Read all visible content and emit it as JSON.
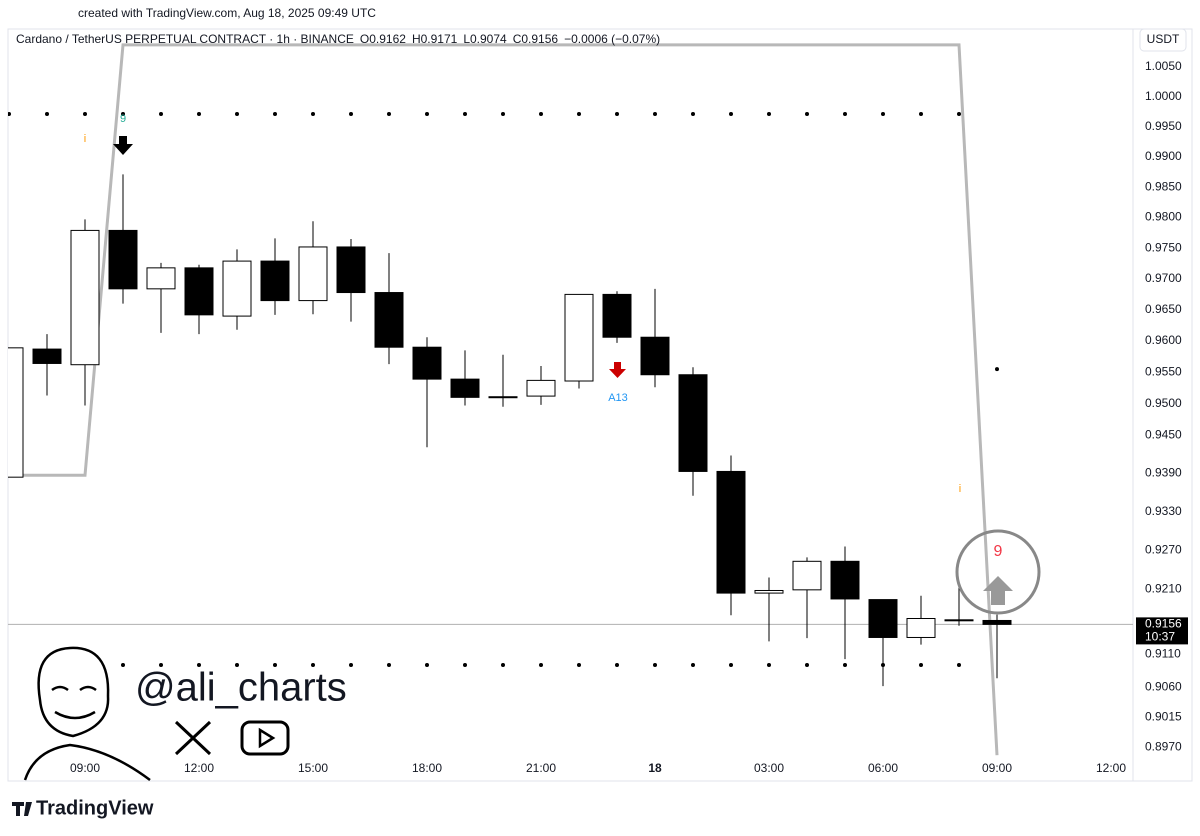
{
  "chart_data": {
    "type": "candlestick",
    "created_note": "created with TradingView.com, Aug 18, 2025 09:49 UTC",
    "title": "Cardano / TetherUS PERPETUAL CONTRACT · 1h · BINANCE",
    "legend_ohlc": [
      "O0.9162",
      "H0.9171",
      "L0.9074",
      "C0.9156",
      "−0.0006 (−0.07%)"
    ],
    "currency": "USDT",
    "watermark": "@ali_charts",
    "brand": "TradingView",
    "log_scale": true,
    "up_color": "#ffffff",
    "down_color": "#000000",
    "categories": [
      null,
      null,
      "09:00",
      null,
      null,
      "12:00",
      null,
      null,
      "15:00",
      null,
      null,
      "18:00",
      null,
      null,
      "21:00",
      null,
      null,
      "18",
      null,
      null,
      "03:00",
      null,
      null,
      "06:00",
      null,
      null,
      "09:00",
      null,
      null,
      "12:00"
    ],
    "open": [
      0.9384,
      0.9587,
      0.9562,
      0.9779,
      0.9684,
      0.9718,
      0.964,
      0.9729,
      0.9665,
      0.9752,
      0.9678,
      0.959,
      0.9539,
      0.951,
      0.9512,
      0.9536,
      0.9675,
      0.9606,
      0.9546,
      0.9393,
      0.9204,
      0.9209,
      0.9253,
      0.9194,
      0.9136,
      0.9163,
      0.9162,
      null,
      null,
      null
    ],
    "high": [
      0.9589,
      0.9611,
      0.9797,
      0.9871,
      0.9726,
      0.9723,
      0.9748,
      0.9766,
      0.9794,
      0.9765,
      0.9742,
      0.9606,
      0.9585,
      0.9578,
      0.956,
      0.9675,
      0.968,
      0.9684,
      0.9558,
      0.9418,
      0.9228,
      0.9259,
      0.9276,
      0.9194,
      0.92,
      0.9213,
      0.9171,
      null,
      null,
      null
    ],
    "low": [
      0.9384,
      0.9513,
      0.9497,
      0.966,
      0.9613,
      0.9611,
      0.9618,
      0.9642,
      0.9643,
      0.9631,
      0.9563,
      0.9431,
      0.9497,
      0.9495,
      0.9498,
      0.9524,
      0.9597,
      0.9526,
      0.9355,
      0.917,
      0.913,
      0.9135,
      0.9103,
      0.9062,
      0.9125,
      0.9154,
      0.9074,
      null,
      null,
      null
    ],
    "close": [
      0.9589,
      0.9564,
      0.9779,
      0.9684,
      0.9718,
      0.9642,
      0.9729,
      0.9665,
      0.9752,
      0.9678,
      0.959,
      0.9539,
      0.951,
      0.9511,
      0.9537,
      0.9675,
      0.9606,
      0.9546,
      0.9393,
      0.9204,
      0.9208,
      0.9253,
      0.9195,
      0.9136,
      0.9165,
      0.9162,
      0.9156,
      null,
      null,
      null
    ],
    "step_line": {
      "color": "#b8b8b8",
      "values": [
        0.9387,
        0.9387,
        0.9387,
        1.0087,
        1.0087,
        1.0087,
        1.0087,
        1.0087,
        1.0087,
        1.0087,
        1.0087,
        1.0087,
        1.0087,
        1.0087,
        1.0087,
        1.0087,
        1.0087,
        1.0087,
        1.0087,
        1.0087,
        1.0087,
        1.0087,
        1.0087,
        1.0087,
        1.0087,
        1.0087,
        0.8958,
        null,
        null,
        null
      ]
    },
    "dot_levels": [
      {
        "color": "#000000",
        "values": [
          0.9971,
          0.9971,
          0.9971,
          0.9971,
          0.9971,
          0.9971,
          0.9971,
          0.9971,
          0.9971,
          0.9971,
          0.9971,
          0.9971,
          0.9971,
          0.9971,
          0.9971,
          0.9971,
          0.9971,
          0.9971,
          0.9971,
          0.9971,
          0.9971,
          0.9971,
          0.9971,
          0.9971,
          0.9971,
          0.9971,
          null,
          null,
          null,
          null
        ]
      },
      {
        "color": "#000000",
        "values": [
          null,
          null,
          null,
          0.9094,
          0.9094,
          0.9094,
          0.9094,
          0.9094,
          0.9094,
          0.9094,
          0.9094,
          0.9094,
          0.9094,
          0.9094,
          0.9094,
          0.9094,
          0.9094,
          0.9094,
          0.9094,
          0.9094,
          0.9094,
          0.9094,
          0.9094,
          0.9094,
          0.9094,
          0.9094,
          0.9555,
          null,
          null,
          null
        ]
      }
    ],
    "annotations": [
      {
        "text": "9",
        "color": "#22ab94"
      },
      {
        "text": "i",
        "color": "#ff9800"
      },
      {
        "text": "A13",
        "color": "#2196f3"
      },
      {
        "text": "i",
        "color": "#ff9800"
      },
      {
        "text": "9",
        "color": "#f23645"
      }
    ],
    "last_price": 0.9156,
    "countdown": "10:37",
    "ylim": [
      0.8921,
      1.0112
    ],
    "yticks": [
      {
        "value": 1.005,
        "label": "1.0050"
      },
      {
        "value": 1.0,
        "label": "1.0000"
      },
      {
        "value": 0.995,
        "label": "0.9950"
      },
      {
        "value": 0.99,
        "label": "0.9900"
      },
      {
        "value": 0.985,
        "label": "0.9850"
      },
      {
        "value": 0.98,
        "label": "0.9800"
      },
      {
        "value": 0.975,
        "label": "0.9750"
      },
      {
        "value": 0.97,
        "label": "0.9700"
      },
      {
        "value": 0.965,
        "label": "0.9650"
      },
      {
        "value": 0.96,
        "label": "0.9600"
      },
      {
        "value": 0.955,
        "label": "0.9550"
      },
      {
        "value": 0.95,
        "label": "0.9500"
      },
      {
        "value": 0.945,
        "label": "0.9450"
      },
      {
        "value": 0.939,
        "label": "0.9390"
      },
      {
        "value": 0.933,
        "label": "0.9330"
      },
      {
        "value": 0.927,
        "label": "0.9270"
      },
      {
        "value": 0.921,
        "label": "0.9210"
      },
      {
        "value": 0.911,
        "label": "0.9110"
      },
      {
        "value": 0.906,
        "label": "0.9060"
      },
      {
        "value": 0.9015,
        "label": "0.9015"
      },
      {
        "value": 0.897,
        "label": "0.8970"
      }
    ]
  }
}
